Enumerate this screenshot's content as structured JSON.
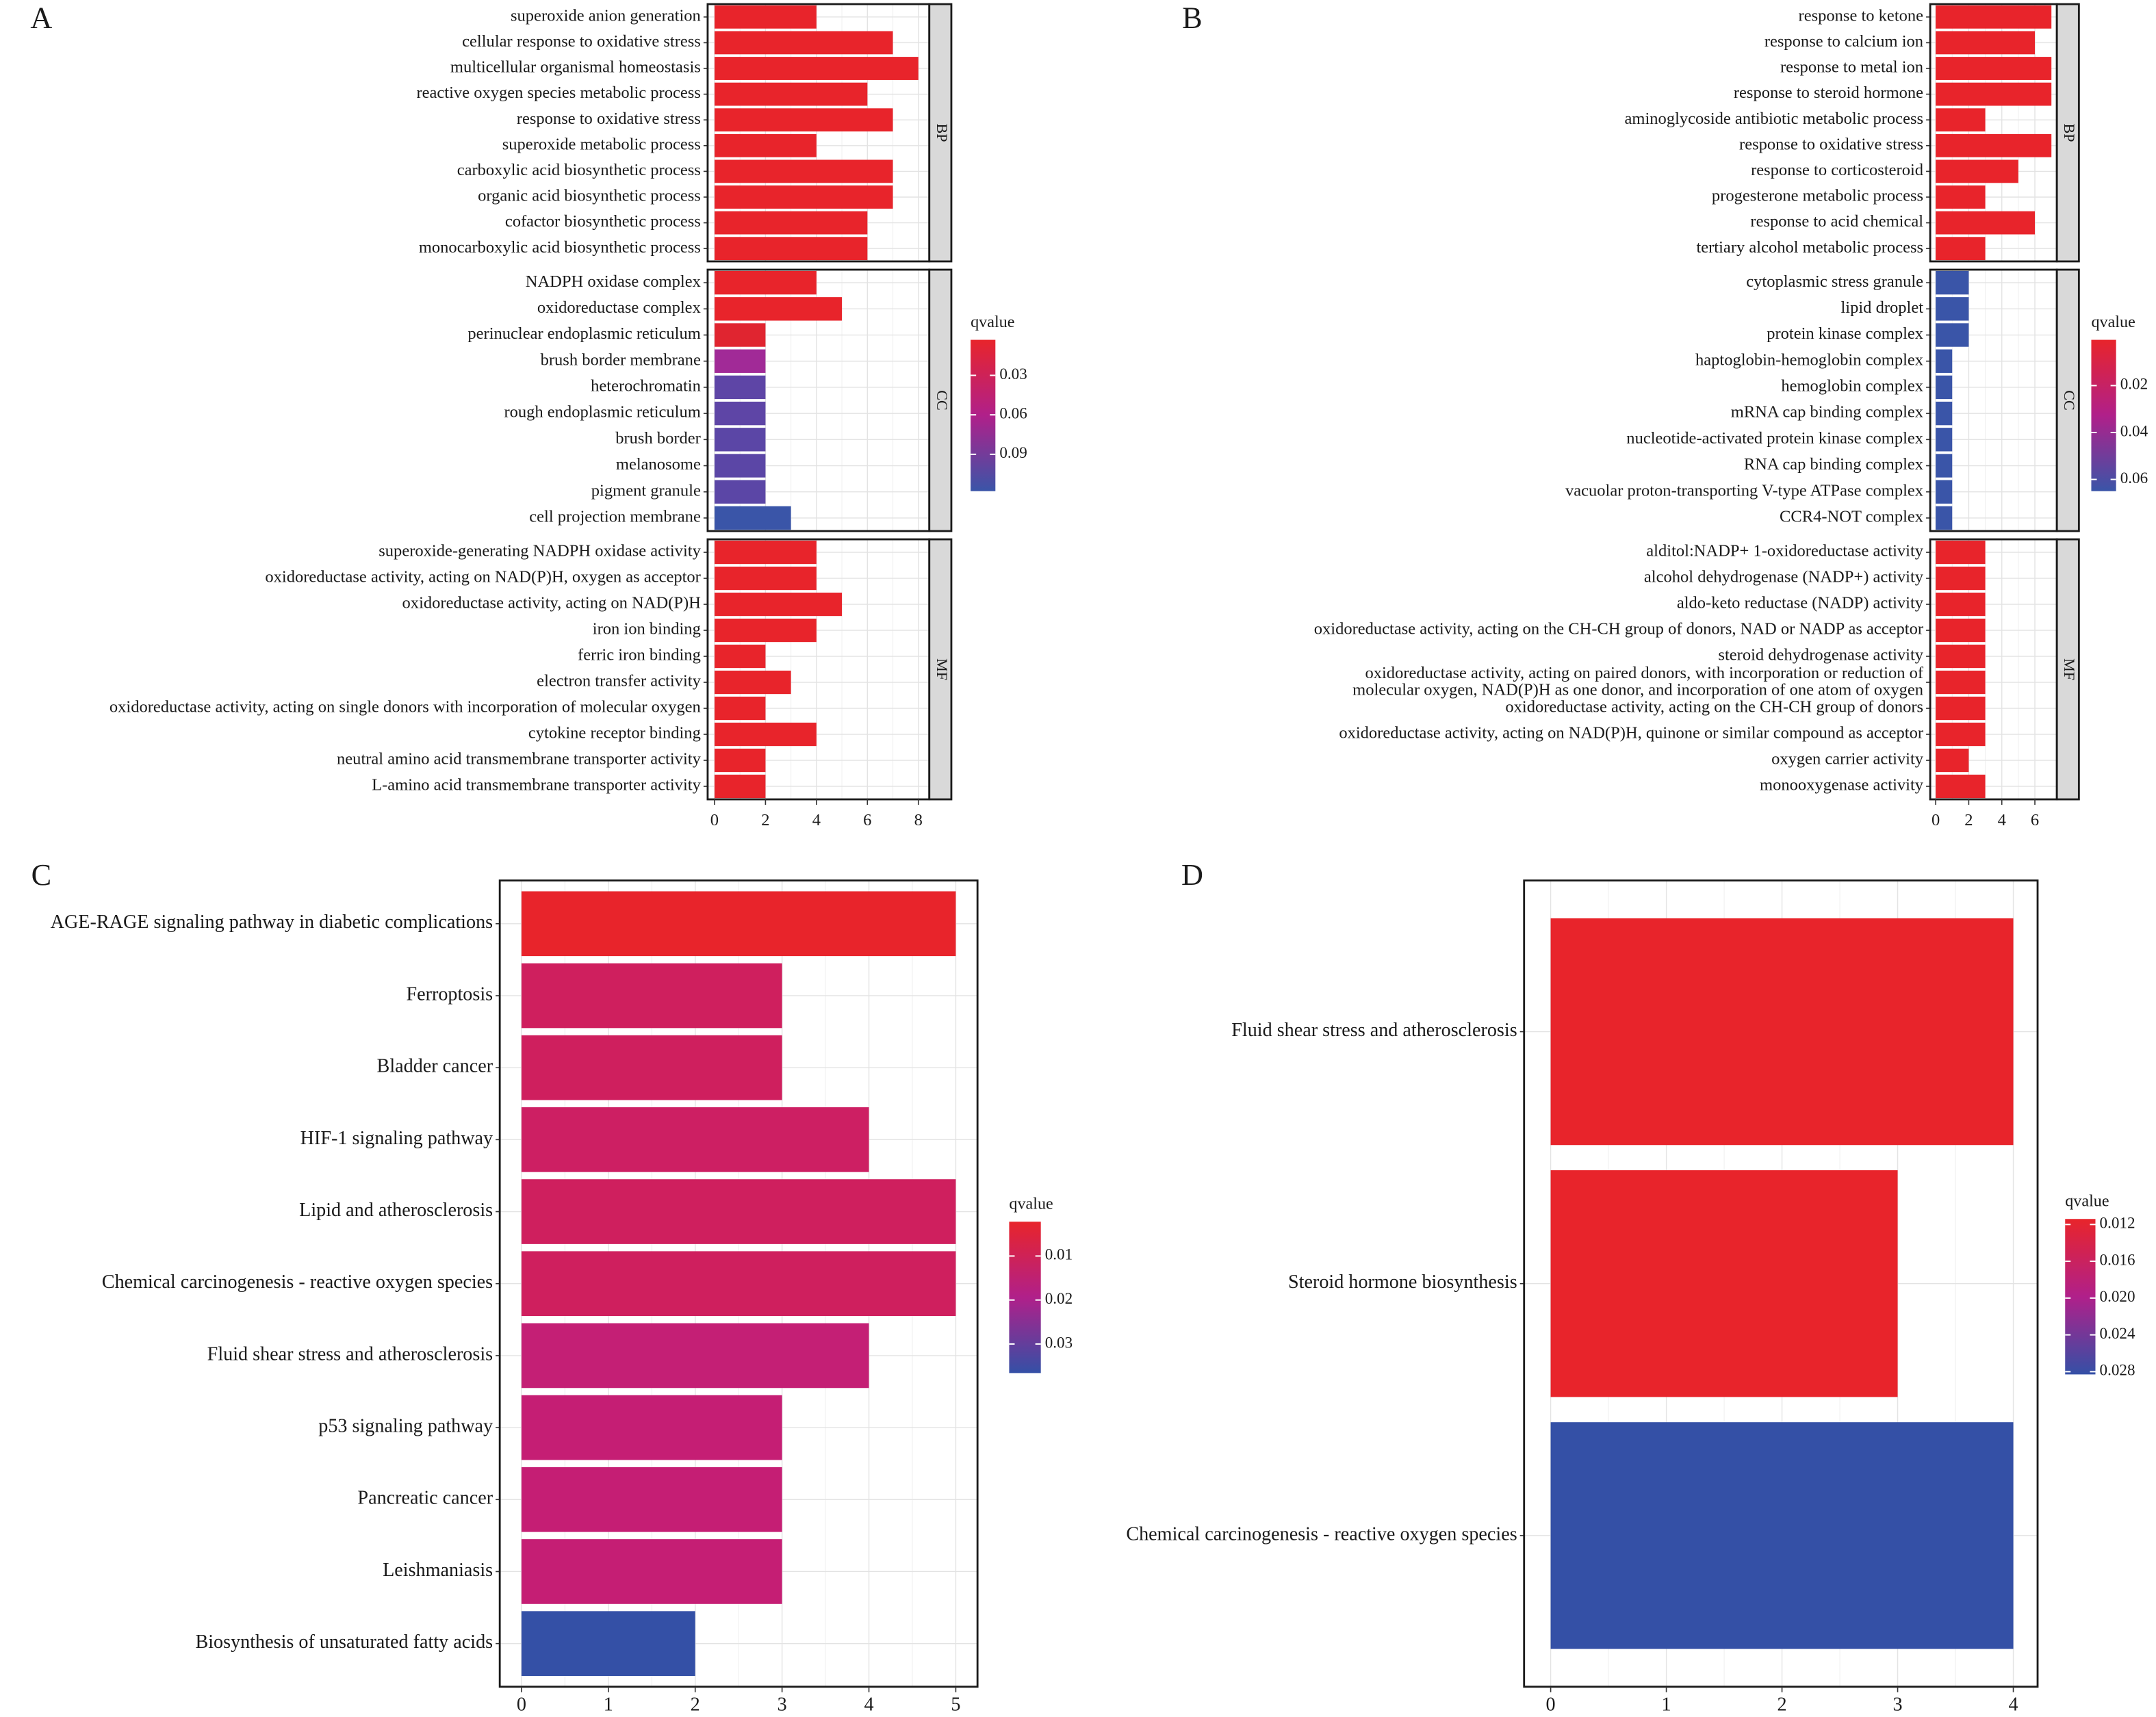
{
  "chart_data": [
    {
      "type": "bar",
      "panel_label": "A",
      "xlim": [
        -0.27,
        8.43
      ],
      "xticks": [
        0,
        2,
        4,
        6,
        8
      ],
      "facets": [
        {
          "name": "BP",
          "categories": [
            "superoxide anion generation",
            "cellular response to oxidative stress",
            "multicellular organismal homeostasis",
            "reactive oxygen species metabolic process",
            "response to oxidative stress",
            "superoxide metabolic process",
            "carboxylic acid biosynthetic process",
            "organic acid biosynthetic process",
            "cofactor biosynthetic process",
            "monocarboxylic acid biosynthetic process"
          ],
          "values": [
            4,
            7,
            8,
            6,
            7,
            4,
            7,
            7,
            6,
            6
          ],
          "colors": [
            "#e8242b",
            "#e8242b",
            "#e8242b",
            "#e8242b",
            "#e8242b",
            "#e8242b",
            "#e8242b",
            "#e8242b",
            "#e8242b",
            "#e8242b"
          ]
        },
        {
          "name": "CC",
          "categories": [
            "NADPH oxidase complex",
            "oxidoreductase complex",
            "perinuclear endoplasmic reticulum",
            "brush border membrane",
            "heterochromatin",
            "rough endoplasmic reticulum",
            "brush border",
            "melanosome",
            "pigment granule",
            "cell projection membrane"
          ],
          "values": [
            4,
            5,
            2,
            2,
            2,
            2,
            2,
            2,
            2,
            3
          ],
          "colors": [
            "#e8242b",
            "#e8242b",
            "#e02530",
            "#a12a97",
            "#5e45a6",
            "#5e45a6",
            "#5b46a6",
            "#5b46a6",
            "#5b46a6",
            "#3a55a8"
          ]
        },
        {
          "name": "MF",
          "categories": [
            "superoxide-generating NADPH oxidase activity",
            "oxidoreductase activity, acting on NAD(P)H, oxygen as acceptor",
            "oxidoreductase activity, acting on NAD(P)H",
            "iron ion binding",
            "ferric iron binding",
            "electron transfer activity",
            "oxidoreductase activity, acting on single donors with incorporation of molecular oxygen",
            "cytokine receptor binding",
            "neutral amino acid transmembrane transporter activity",
            "L-amino acid transmembrane transporter activity"
          ],
          "values": [
            4,
            4,
            5,
            4,
            2,
            3,
            2,
            4,
            2,
            2
          ],
          "colors": [
            "#e8242b",
            "#e8242b",
            "#e8242b",
            "#e8242b",
            "#e8242b",
            "#e8242b",
            "#e8242b",
            "#e8242b",
            "#e8242b",
            "#e8242b"
          ]
        }
      ],
      "colorbar": {
        "title": "qvalue",
        "lim": [
          0.003,
          0.118
        ],
        "ticks": [
          0.03,
          0.06,
          0.09
        ],
        "colors": [
          "#e8242b",
          "#b0208a",
          "#3a55a8"
        ]
      }
    },
    {
      "type": "bar",
      "panel_label": "B",
      "xlim": [
        -0.33,
        7.33
      ],
      "xticks": [
        0,
        2,
        4,
        6
      ],
      "facets": [
        {
          "name": "BP",
          "categories": [
            "response to ketone",
            "response to calcium ion",
            "response to metal ion",
            "response to steroid hormone",
            "aminoglycoside antibiotic metabolic process",
            "response to oxidative stress",
            "response to corticosteroid",
            "progesterone metabolic process",
            "response to acid chemical",
            "tertiary alcohol metabolic process"
          ],
          "values": [
            7,
            6,
            7,
            7,
            3,
            7,
            5,
            3,
            6,
            3
          ],
          "colors": [
            "#e8242b",
            "#e8242b",
            "#e8242b",
            "#e8242b",
            "#e8242b",
            "#e8242b",
            "#e8242b",
            "#e8242b",
            "#e8242b",
            "#e8242b"
          ]
        },
        {
          "name": "CC",
          "categories": [
            "cytoplasmic stress granule",
            "lipid droplet",
            "protein kinase complex",
            "haptoglobin-hemoglobin complex",
            "hemoglobin complex",
            "mRNA cap binding complex",
            "nucleotide-activated protein kinase complex",
            "RNA cap binding complex",
            "vacuolar proton-transporting V-type ATPase complex",
            "CCR4-NOT complex"
          ],
          "values": [
            2,
            2,
            2,
            1,
            1,
            1,
            1,
            1,
            1,
            1
          ],
          "colors": [
            "#3a55a8",
            "#3a55a8",
            "#3a55a8",
            "#3a55a8",
            "#3a55a8",
            "#3a55a8",
            "#3a55a8",
            "#3a55a8",
            "#3a55a8",
            "#3a55a8"
          ]
        },
        {
          "name": "MF",
          "categories": [
            "alditol:NADP+ 1-oxidoreductase activity",
            "alcohol dehydrogenase (NADP+) activity",
            "aldo-keto reductase (NADP) activity",
            "oxidoreductase activity, acting on the CH-CH group of donors, NAD or NADP as acceptor",
            "steroid dehydrogenase activity",
            "oxidoreductase activity, acting on paired donors, with incorporation or reduction of\nmolecular oxygen, NAD(P)H as one donor, and incorporation of one atom of oxygen",
            "oxidoreductase activity, acting on the CH-CH group of donors",
            "oxidoreductase activity, acting on NAD(P)H, quinone or similar compound as acceptor",
            "oxygen carrier activity",
            "monooxygenase activity"
          ],
          "values": [
            3,
            3,
            3,
            3,
            3,
            3,
            3,
            3,
            2,
            3
          ],
          "colors": [
            "#e8242b",
            "#e8242b",
            "#e8242b",
            "#e8242b",
            "#e8242b",
            "#e8242b",
            "#e8242b",
            "#e8242b",
            "#e8242b",
            "#e8242b"
          ]
        }
      ],
      "colorbar": {
        "title": "qvalue",
        "lim": [
          0.0005,
          0.065
        ],
        "ticks": [
          0.02,
          0.04,
          0.06
        ],
        "colors": [
          "#e8242b",
          "#b0208a",
          "#3a55a8"
        ]
      }
    },
    {
      "type": "bar",
      "panel_label": "C",
      "xlim": [
        -0.25,
        5.25
      ],
      "xticks": [
        0,
        1,
        2,
        3,
        4,
        5
      ],
      "categories": [
        "AGE-RAGE signaling pathway in diabetic complications",
        "Ferroptosis",
        "Bladder cancer",
        "HIF-1 signaling pathway",
        "Lipid and atherosclerosis",
        "Chemical carcinogenesis - reactive oxygen species",
        "Fluid shear stress and atherosclerosis",
        "p53 signaling pathway",
        "Pancreatic cancer",
        "Leishmaniasis",
        "Biosynthesis of unsaturated fatty acids"
      ],
      "values": [
        5,
        3,
        3,
        4,
        5,
        5,
        4,
        3,
        3,
        3,
        2
      ],
      "colors": [
        "#e8242b",
        "#cf1f5e",
        "#cf1f5e",
        "#cd1f63",
        "#cf1f5e",
        "#cf1f5e",
        "#c41f75",
        "#c51e74",
        "#c51e74",
        "#c51e74",
        "#3450a6"
      ],
      "colorbar": {
        "title": "qvalue",
        "lim": [
          0.0022,
          0.0366
        ],
        "ticks": [
          0.01,
          0.02,
          0.03
        ],
        "colors": [
          "#e8242b",
          "#b0208a",
          "#3450a6"
        ]
      }
    },
    {
      "type": "bar",
      "panel_label": "D",
      "xlim": [
        -0.23,
        4.21
      ],
      "xticks": [
        0,
        1,
        2,
        3,
        4
      ],
      "categories": [
        "Fluid shear stress and atherosclerosis",
        "Steroid hormone biosynthesis",
        "Chemical carcinogenesis - reactive oxygen species"
      ],
      "values": [
        4,
        3,
        4
      ],
      "colors": [
        "#e8242b",
        "#e8242b",
        "#3450a6"
      ],
      "colorbar": {
        "title": "qvalue",
        "lim": [
          0.0114,
          0.0283
        ],
        "ticks": [
          0.012,
          0.016,
          {
            "value": 0.02,
            "label": "0.020"
          },
          0.024,
          0.028
        ],
        "colors": [
          "#e8242b",
          "#b0208a",
          "#3450a6"
        ]
      }
    }
  ]
}
